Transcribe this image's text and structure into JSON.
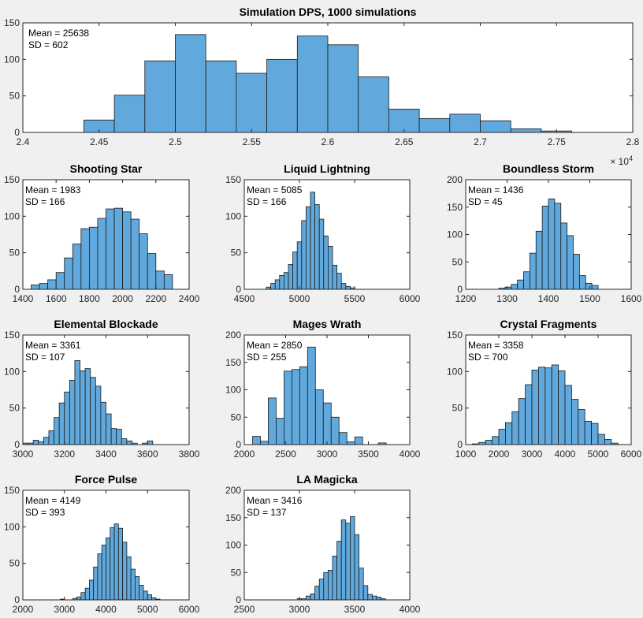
{
  "colors": {
    "bar_fill": "#61a9dc",
    "bar_edge": "#1a1a1a",
    "axes_bg": "#ffffff",
    "figure_bg": "#f0f0f0"
  },
  "chart_data": [
    {
      "id": "dps",
      "type": "bar",
      "title": "Simulation DPS, 1000 simulations",
      "stats": {
        "mean": "Mean = 25638",
        "sd": "SD = 602"
      },
      "xlim": [
        2.4,
        2.8
      ],
      "ylim": [
        0,
        150
      ],
      "x_exponent": {
        "base": "× 10",
        "power": "4"
      },
      "xticks": [
        2.4,
        2.45,
        2.5,
        2.55,
        2.6,
        2.65,
        2.7,
        2.75,
        2.8
      ],
      "xtick_labels": [
        "2.4",
        "2.45",
        "2.5",
        "2.55",
        "2.6",
        "2.65",
        "2.7",
        "2.75",
        "2.8"
      ],
      "yticks": [
        0,
        50,
        100,
        150
      ],
      "ytick_labels": [
        "0",
        "50",
        "100",
        "150"
      ],
      "bin_start": 2.44,
      "bin_width": 0.02,
      "counts": [
        17,
        51,
        98,
        134,
        98,
        81,
        100,
        132,
        120,
        76,
        32,
        19,
        25,
        16,
        5,
        2
      ]
    },
    {
      "id": "shooting-star",
      "type": "bar",
      "title": "Shooting Star",
      "stats": {
        "mean": "Mean = 1983",
        "sd": "SD = 166"
      },
      "xlim": [
        1400,
        2400
      ],
      "ylim": [
        0,
        150
      ],
      "xticks": [
        1400,
        1600,
        1800,
        2000,
        2200,
        2400
      ],
      "xtick_labels": [
        "1400",
        "1600",
        "1800",
        "2000",
        "2200",
        "2400"
      ],
      "yticks": [
        0,
        50,
        100,
        150
      ],
      "ytick_labels": [
        "0",
        "50",
        "100",
        "150"
      ],
      "bin_start": 1450,
      "bin_width": 50,
      "counts": [
        6,
        8,
        13,
        23,
        43,
        62,
        83,
        85,
        97,
        110,
        111,
        106,
        96,
        76,
        49,
        25,
        20
      ]
    },
    {
      "id": "liquid-lightning",
      "type": "bar",
      "title": "Liquid Lightning",
      "stats": {
        "mean": "Mean = 5085",
        "sd": "SD = 166"
      },
      "xlim": [
        4500,
        6000
      ],
      "ylim": [
        0,
        150
      ],
      "xticks": [
        4500,
        5000,
        5500,
        6000
      ],
      "xtick_labels": [
        "4500",
        "5000",
        "5500",
        "6000"
      ],
      "yticks": [
        0,
        50,
        100,
        150
      ],
      "ytick_labels": [
        "0",
        "50",
        "100",
        "150"
      ],
      "bin_start": 4700,
      "bin_width": 40,
      "counts": [
        3,
        8,
        13,
        19,
        23,
        34,
        51,
        65,
        94,
        113,
        133,
        116,
        96,
        73,
        59,
        33,
        22,
        8,
        4,
        2
      ]
    },
    {
      "id": "boundless-storm",
      "type": "bar",
      "title": "Boundless Storm",
      "stats": {
        "mean": "Mean = 1436",
        "sd": "SD = 45"
      },
      "xlim": [
        1200,
        1600
      ],
      "ylim": [
        0,
        200
      ],
      "xticks": [
        1200,
        1300,
        1400,
        1500,
        1600
      ],
      "xtick_labels": [
        "1200",
        "1300",
        "1400",
        "1500",
        "1600"
      ],
      "yticks": [
        0,
        50,
        100,
        150,
        200
      ],
      "ytick_labels": [
        "0",
        "50",
        "100",
        "150",
        "200"
      ],
      "bin_start": 1280,
      "bin_width": 15,
      "counts": [
        2,
        4,
        9,
        17,
        32,
        66,
        106,
        152,
        165,
        157,
        121,
        98,
        64,
        25,
        11,
        7
      ]
    },
    {
      "id": "elemental-blockade",
      "type": "bar",
      "title": "Elemental Blockade",
      "stats": {
        "mean": "Mean = 3361",
        "sd": "SD = 107"
      },
      "xlim": [
        3000,
        3800
      ],
      "ylim": [
        0,
        150
      ],
      "xticks": [
        3000,
        3200,
        3400,
        3600,
        3800
      ],
      "xtick_labels": [
        "3000",
        "3200",
        "3400",
        "3600",
        "3800"
      ],
      "yticks": [
        0,
        50,
        100,
        150
      ],
      "ytick_labels": [
        "0",
        "50",
        "100",
        "150"
      ],
      "bin_start": 3000,
      "bin_width": 25,
      "counts": [
        2,
        2,
        6,
        4,
        10,
        19,
        37,
        57,
        72,
        88,
        115,
        101,
        104,
        92,
        80,
        58,
        42,
        22,
        21,
        8,
        5,
        2,
        0,
        2,
        5
      ]
    },
    {
      "id": "mages-wrath",
      "type": "bar",
      "title": "Mages Wrath",
      "stats": {
        "mean": "Mean = 2850",
        "sd": "SD = 255"
      },
      "xlim": [
        2000,
        4000
      ],
      "ylim": [
        0,
        200
      ],
      "xticks": [
        2000,
        2500,
        3000,
        3500,
        4000
      ],
      "xtick_labels": [
        "2000",
        "2500",
        "3000",
        "3500",
        "4000"
      ],
      "yticks": [
        0,
        50,
        100,
        150,
        200
      ],
      "ytick_labels": [
        "0",
        "50",
        "100",
        "150",
        "200"
      ],
      "bin_start": 2100,
      "bin_width": 95,
      "counts": [
        15,
        6,
        85,
        48,
        134,
        137,
        142,
        178,
        100,
        76,
        50,
        22,
        5,
        14,
        0,
        0,
        3
      ]
    },
    {
      "id": "crystal-fragments",
      "type": "bar",
      "title": "Crystal Fragments",
      "stats": {
        "mean": "Mean = 3358",
        "sd": "SD = 700"
      },
      "xlim": [
        1000,
        6000
      ],
      "ylim": [
        0,
        150
      ],
      "xticks": [
        1000,
        2000,
        3000,
        4000,
        5000,
        6000
      ],
      "xtick_labels": [
        "1000",
        "2000",
        "3000",
        "4000",
        "5000",
        "6000"
      ],
      "yticks": [
        0,
        50,
        100,
        150
      ],
      "ytick_labels": [
        "0",
        "50",
        "100",
        "150"
      ],
      "bin_start": 1200,
      "bin_width": 200,
      "counts": [
        1,
        3,
        6,
        11,
        21,
        30,
        45,
        63,
        82,
        102,
        106,
        105,
        109,
        101,
        81,
        62,
        48,
        32,
        29,
        14,
        7,
        2
      ]
    },
    {
      "id": "force-pulse",
      "type": "bar",
      "title": "Force Pulse",
      "stats": {
        "mean": "Mean = 4149",
        "sd": "SD = 393"
      },
      "xlim": [
        2000,
        6000
      ],
      "ylim": [
        0,
        150
      ],
      "xticks": [
        2000,
        3000,
        4000,
        5000,
        6000
      ],
      "xtick_labels": [
        "2000",
        "3000",
        "4000",
        "5000",
        "6000"
      ],
      "yticks": [
        0,
        50,
        100,
        150
      ],
      "ytick_labels": [
        "0",
        "50",
        "100",
        "150"
      ],
      "bin_start": 2900,
      "bin_width": 100,
      "counts": [
        1,
        0,
        0,
        2,
        4,
        10,
        16,
        27,
        45,
        63,
        75,
        85,
        99,
        104,
        98,
        79,
        59,
        42,
        32,
        20,
        12,
        7,
        3,
        1
      ]
    },
    {
      "id": "la-magicka",
      "type": "bar",
      "title": "LA Magicka",
      "stats": {
        "mean": "Mean = 3416",
        "sd": "SD = 137"
      },
      "xlim": [
        2500,
        4000
      ],
      "ylim": [
        0,
        200
      ],
      "xticks": [
        2500,
        3000,
        3500,
        4000
      ],
      "xtick_labels": [
        "2500",
        "3000",
        "3500",
        "4000"
      ],
      "yticks": [
        0,
        50,
        100,
        150,
        200
      ],
      "ytick_labels": [
        "0",
        "50",
        "100",
        "150",
        "200"
      ],
      "bin_start": 2980,
      "bin_width": 40,
      "counts": [
        2,
        2,
        7,
        11,
        25,
        38,
        50,
        54,
        80,
        107,
        146,
        140,
        152,
        119,
        58,
        26,
        10,
        7,
        5,
        2
      ]
    }
  ]
}
